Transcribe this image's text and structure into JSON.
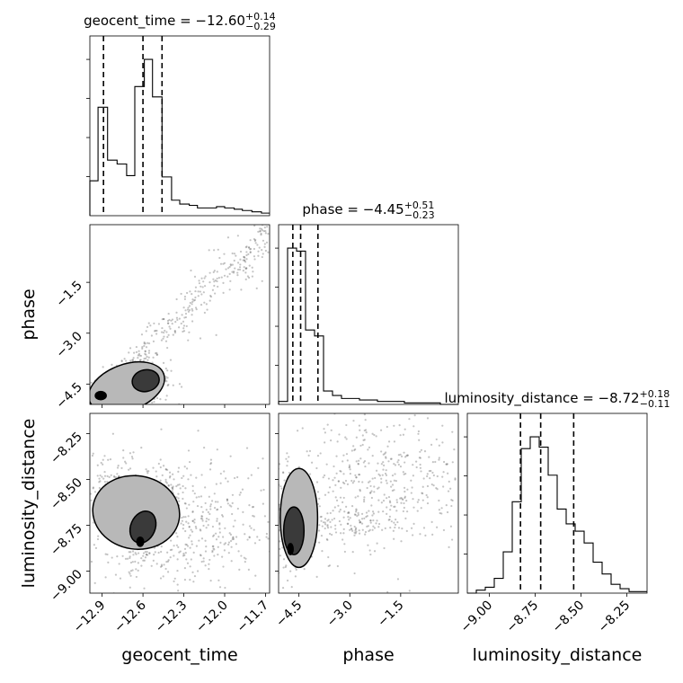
{
  "chart_data": {
    "type": "corner",
    "params": [
      "geocent_time",
      "phase",
      "luminosity_distance"
    ],
    "axis_labels": [
      "geocent_time",
      "phase",
      "luminosity_distance"
    ],
    "titles": [
      {
        "name": "geocent_time",
        "median": "−12.60",
        "plus": "+0.14",
        "minus": "−0.29"
      },
      {
        "name": "phase",
        "median": "−4.45",
        "plus": "+0.51",
        "minus": "−0.23"
      },
      {
        "name": "luminosity_distance",
        "median": "−8.72",
        "plus": "+0.18",
        "minus": "−0.11"
      }
    ],
    "ranges": [
      [
        -12.99,
        -11.67
      ],
      [
        -5.1,
        0.2
      ],
      [
        -9.12,
        -8.14
      ]
    ],
    "ticks": [
      [
        -12.9,
        -12.6,
        -12.3,
        -12.0,
        -11.7
      ],
      [
        -4.5,
        -3.0,
        -1.5
      ],
      [
        -9.0,
        -8.75,
        -8.5,
        -8.25
      ]
    ],
    "tick_labels": [
      [
        "−12.9",
        "−12.6",
        "−12.3",
        "−12.0",
        "−11.7"
      ],
      [
        "−4.5",
        "−3.0",
        "−1.5"
      ],
      [
        "−9.00",
        "−8.75",
        "−8.50",
        "−8.25"
      ]
    ],
    "quantiles": [
      [
        -12.89,
        -12.6,
        -12.46
      ],
      [
        -4.68,
        -4.45,
        -3.94
      ],
      [
        -8.83,
        -8.72,
        -8.54
      ]
    ],
    "histograms": [
      {
        "edges": [
          -12.99,
          -12.93,
          -12.86,
          -12.79,
          -12.72,
          -12.66,
          -12.59,
          -12.53,
          -12.46,
          -12.39,
          -12.33,
          -12.26,
          -12.2,
          -12.13,
          -12.06,
          -12.0,
          -11.93,
          -11.87,
          -11.8,
          -11.73,
          -11.67
        ],
        "counts": [
          0.27,
          0.84,
          0.43,
          0.4,
          0.31,
          1.0,
          1.21,
          0.92,
          0.3,
          0.12,
          0.09,
          0.08,
          0.06,
          0.06,
          0.07,
          0.06,
          0.05,
          0.04,
          0.03,
          0.02
        ]
      },
      {
        "edges": [
          -5.1,
          -4.835,
          -4.57,
          -4.305,
          -4.04,
          -3.775,
          -3.51,
          -3.245,
          -2.98,
          -2.715,
          -2.45,
          -2.185,
          -1.92,
          -1.655,
          -1.39,
          -1.125,
          -0.86,
          -0.595,
          -0.33,
          -0.065,
          0.2
        ],
        "counts": [
          0.02,
          1.05,
          1.03,
          0.5,
          0.46,
          0.09,
          0.06,
          0.04,
          0.04,
          0.03,
          0.03,
          0.02,
          0.02,
          0.02,
          0.01,
          0.01,
          0.01,
          0.01,
          0.0,
          0.0
        ]
      },
      {
        "edges": [
          -9.12,
          -9.071,
          -9.022,
          -8.973,
          -8.924,
          -8.875,
          -8.826,
          -8.777,
          -8.728,
          -8.679,
          -8.63,
          -8.581,
          -8.532,
          -8.483,
          -8.434,
          -8.385,
          -8.336,
          -8.287,
          -8.238,
          -8.189,
          -8.14
        ],
        "counts": [
          0.0,
          0.02,
          0.04,
          0.1,
          0.28,
          0.62,
          0.98,
          1.06,
          0.99,
          0.8,
          0.57,
          0.47,
          0.42,
          0.34,
          0.21,
          0.13,
          0.06,
          0.03,
          0.01,
          0.01
        ]
      }
    ],
    "hist2d": [
      {
        "x": 1,
        "y": 0,
        "clusters": [
          {
            "cx": -12.92,
            "cy": -4.85,
            "sx": 0.05,
            "sy": 0.18,
            "n": 150
          },
          {
            "cx": -12.58,
            "cy": -4.4,
            "sx": 0.09,
            "sy": 0.35,
            "n": 200
          },
          {
            "cx": -12.75,
            "cy": -4.75,
            "sx": 0.18,
            "sy": 0.25,
            "n": 140
          }
        ],
        "trend": {
          "x0": -12.9,
          "x1": -11.67,
          "y0": -4.7,
          "y1": 0.1,
          "noise": 0.5,
          "n": 360
        },
        "contours": [
          {
            "level": 1,
            "cx": -12.72,
            "cy": -4.6,
            "rx": 0.29,
            "ry": 0.68,
            "rot": -0.35
          },
          {
            "level": 2,
            "cx": -12.58,
            "cy": -4.4,
            "rx": 0.1,
            "ry": 0.32,
            "rot": -0.2
          },
          {
            "level": 3,
            "cx": -12.91,
            "cy": -4.84,
            "rx": 0.04,
            "ry": 0.12,
            "rot": 0.0
          }
        ]
      },
      {
        "x": 2,
        "y": 0,
        "clusters": [
          {
            "cx": -12.82,
            "cy": -8.62,
            "sx": 0.09,
            "sy": 0.13,
            "n": 180
          },
          {
            "cx": -12.62,
            "cy": -8.78,
            "sx": 0.06,
            "sy": 0.08,
            "n": 220
          },
          {
            "cx": -12.5,
            "cy": -8.6,
            "sx": 0.06,
            "sy": 0.06,
            "n": 140
          },
          {
            "cx": -12.3,
            "cy": -8.75,
            "sx": 0.35,
            "sy": 0.2,
            "n": 500
          }
        ],
        "contours": [
          {
            "level": 1,
            "cx": -12.65,
            "cy": -8.68,
            "rx": 0.32,
            "ry": 0.2,
            "rot": 0.15
          },
          {
            "level": 2,
            "cx": -12.6,
            "cy": -8.76,
            "rx": 0.09,
            "ry": 0.09,
            "rot": 0.4
          },
          {
            "level": 3,
            "cx": -12.62,
            "cy": -8.84,
            "rx": 0.025,
            "ry": 0.025,
            "rot": 0.0
          }
        ]
      },
      {
        "x": 2,
        "y": 1,
        "clusters": [
          {
            "cx": -4.65,
            "cy": -8.7,
            "sx": 0.3,
            "sy": 0.13,
            "n": 500
          },
          {
            "cx": -2.9,
            "cy": -8.74,
            "sx": 0.5,
            "sy": 0.05,
            "n": 80
          },
          {
            "cx": -2.0,
            "cy": -8.5,
            "sx": 1.2,
            "sy": 0.2,
            "n": 420
          }
        ],
        "contours": [
          {
            "level": 1,
            "cx": -4.5,
            "cy": -8.71,
            "rx": 0.55,
            "ry": 0.27,
            "rot": 0.0
          },
          {
            "level": 2,
            "cx": -4.65,
            "cy": -8.78,
            "rx": 0.3,
            "ry": 0.13,
            "rot": 0.0
          },
          {
            "level": 3,
            "cx": -4.75,
            "cy": -8.88,
            "rx": 0.08,
            "ry": 0.03,
            "rot": 0.0
          }
        ]
      }
    ]
  }
}
